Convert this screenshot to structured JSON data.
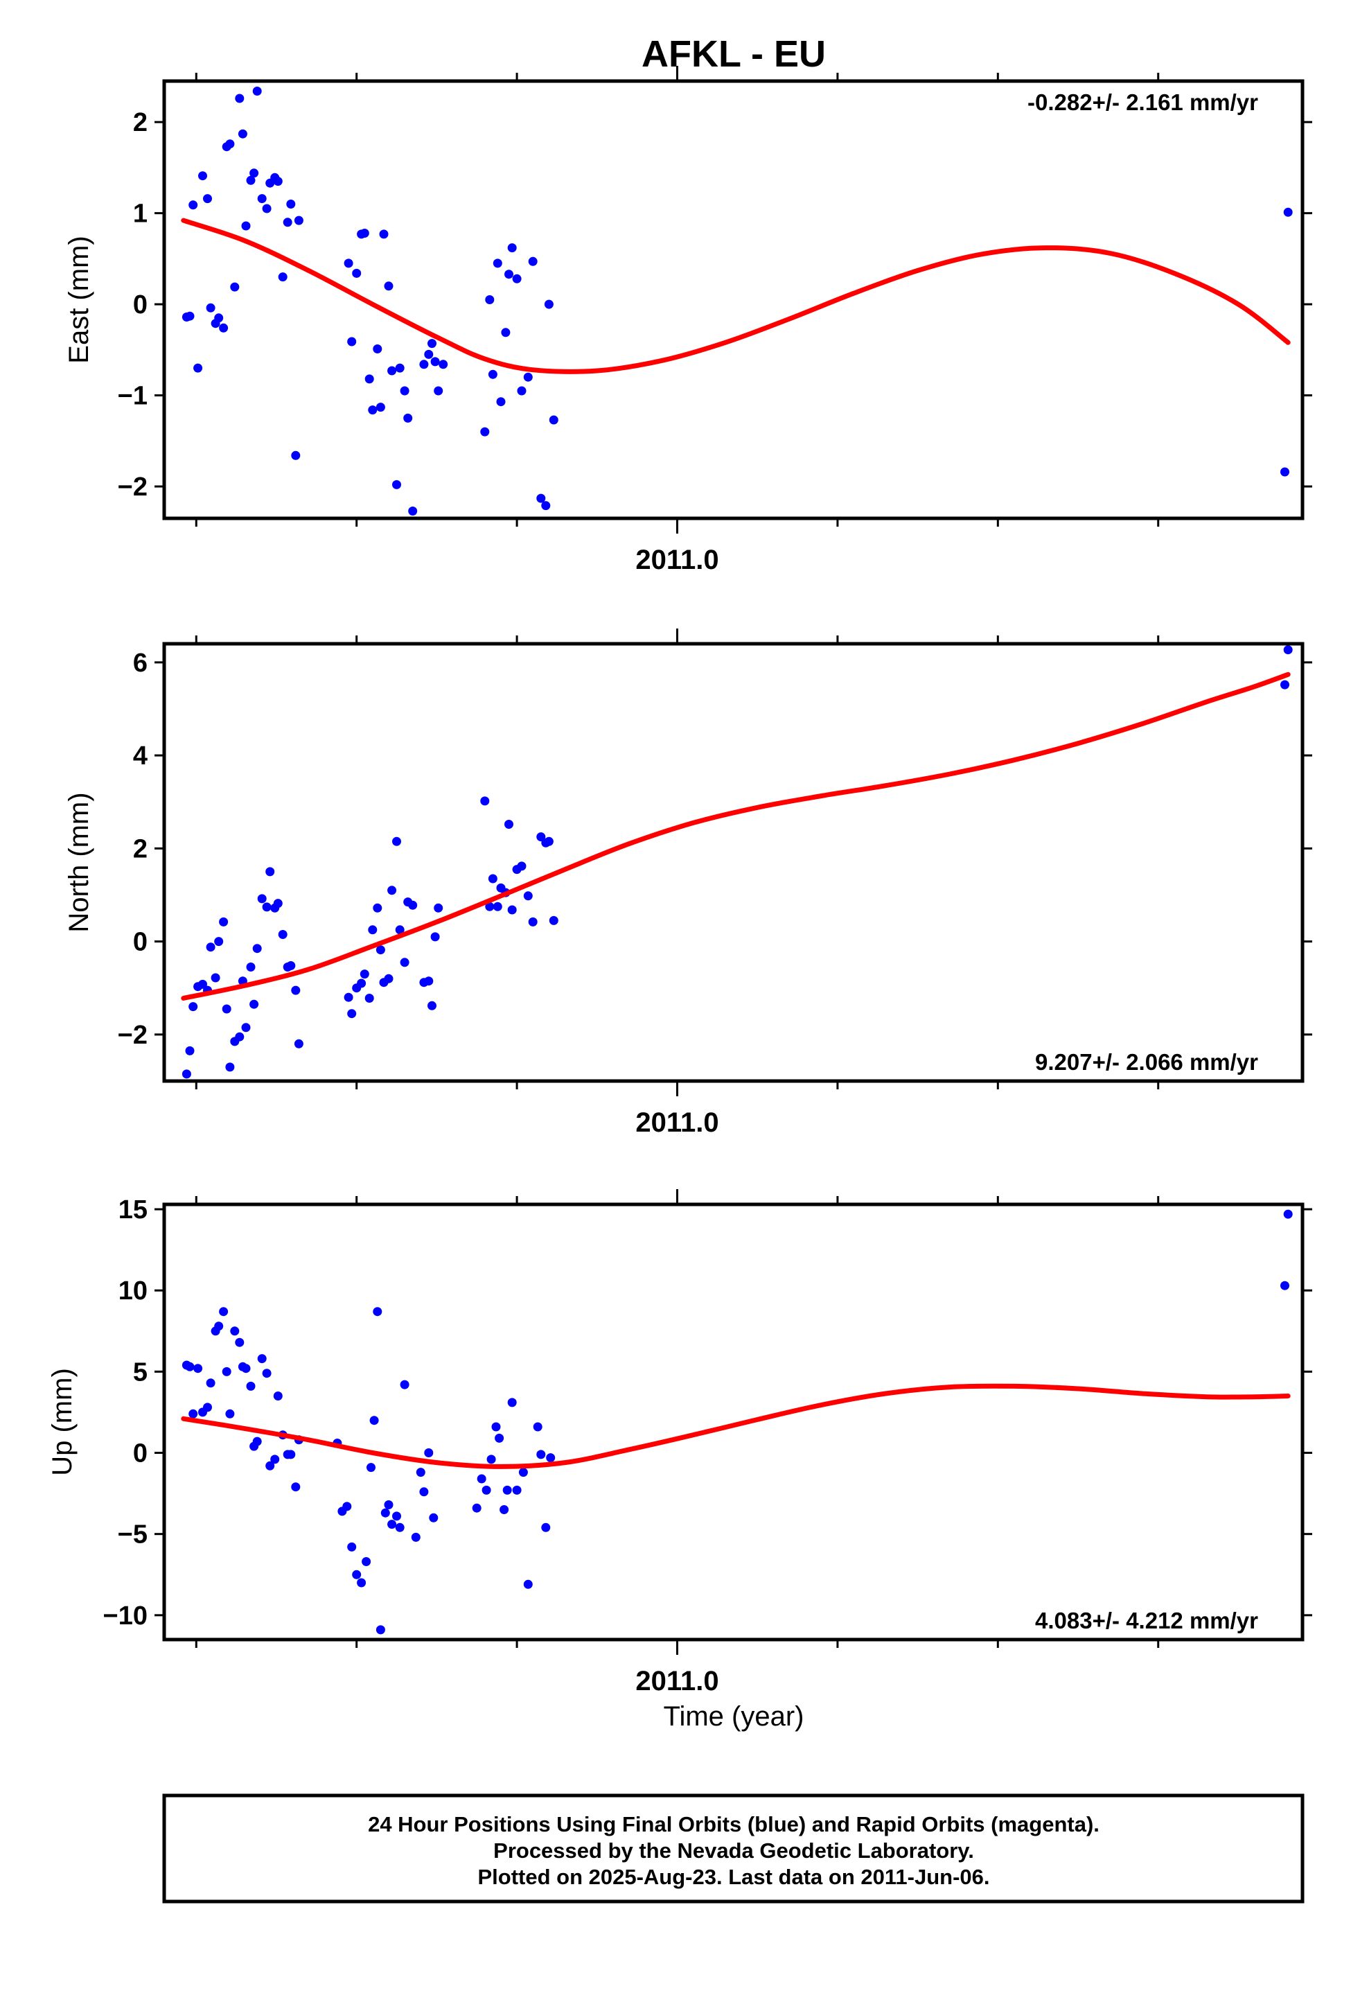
{
  "title": "AFKL - EU",
  "x_axis_label": "Time (year)",
  "footer_lines": [
    "24 Hour Positions Using Final Orbits (blue) and Rapid Orbits (magenta).",
    "Processed by the Nevada Geodetic Laboratory.",
    "Plotted on 2025-Aug-23. Last data on 2011-Jun-06."
  ],
  "colors": {
    "data_points": "#0000ff",
    "model_curve": "#ff0000",
    "frame": "#000000"
  },
  "chart_data": [
    {
      "type": "scatter",
      "ylabel": "East (mm)",
      "rate_label": "-0.282+/- 2.161 mm/yr",
      "rate_position": "top-right",
      "xlim": [
        2010.68,
        2011.39
      ],
      "ylim": [
        -2.35,
        2.45
      ],
      "yticks": [
        -2,
        -1,
        0,
        1,
        2
      ],
      "ytick_labels": [
        "−2",
        "−1",
        "0",
        "1",
        "2"
      ],
      "xticks_major": [
        2011.0
      ],
      "xtick_labels": [
        "2011.0"
      ],
      "xticks_minor": [
        2010.7,
        2010.8,
        2010.9,
        2011.1,
        2011.2,
        2011.3
      ],
      "points": [
        [
          2010.694,
          -0.14
        ],
        [
          2010.696,
          -0.13
        ],
        [
          2010.698,
          1.09
        ],
        [
          2010.701,
          -0.7
        ],
        [
          2010.704,
          1.41
        ],
        [
          2010.707,
          1.16
        ],
        [
          2010.709,
          -0.04
        ],
        [
          2010.712,
          -0.21
        ],
        [
          2010.714,
          -0.15
        ],
        [
          2010.717,
          -0.26
        ],
        [
          2010.719,
          1.73
        ],
        [
          2010.721,
          1.76
        ],
        [
          2010.724,
          0.19
        ],
        [
          2010.727,
          2.26
        ],
        [
          2010.729,
          1.87
        ],
        [
          2010.731,
          0.86
        ],
        [
          2010.734,
          1.36
        ],
        [
          2010.736,
          1.44
        ],
        [
          2010.738,
          2.34
        ],
        [
          2010.741,
          1.16
        ],
        [
          2010.744,
          1.05
        ],
        [
          2010.746,
          1.33
        ],
        [
          2010.749,
          1.39
        ],
        [
          2010.751,
          1.35
        ],
        [
          2010.754,
          0.3
        ],
        [
          2010.757,
          0.9
        ],
        [
          2010.759,
          1.1
        ],
        [
          2010.762,
          -1.66
        ],
        [
          2010.764,
          0.92
        ],
        [
          2010.795,
          0.45
        ],
        [
          2010.797,
          -0.41
        ],
        [
          2010.8,
          0.34
        ],
        [
          2010.803,
          0.77
        ],
        [
          2010.805,
          0.78
        ],
        [
          2010.808,
          -0.82
        ],
        [
          2010.81,
          -1.16
        ],
        [
          2010.813,
          -0.49
        ],
        [
          2010.815,
          -1.13
        ],
        [
          2010.817,
          0.77
        ],
        [
          2010.82,
          0.2
        ],
        [
          2010.822,
          -0.73
        ],
        [
          2010.825,
          -1.98
        ],
        [
          2010.827,
          -0.7
        ],
        [
          2010.83,
          -0.95
        ],
        [
          2010.832,
          -1.25
        ],
        [
          2010.835,
          -2.27
        ],
        [
          2010.842,
          -0.66
        ],
        [
          2010.845,
          -0.55
        ],
        [
          2010.847,
          -0.43
        ],
        [
          2010.849,
          -0.63
        ],
        [
          2010.851,
          -0.95
        ],
        [
          2010.854,
          -0.66
        ],
        [
          2010.88,
          -1.4
        ],
        [
          2010.883,
          0.05
        ],
        [
          2010.885,
          -0.77
        ],
        [
          2010.888,
          0.45
        ],
        [
          2010.89,
          -1.07
        ],
        [
          2010.893,
          -0.31
        ],
        [
          2010.895,
          0.33
        ],
        [
          2010.897,
          0.62
        ],
        [
          2010.9,
          0.28
        ],
        [
          2010.903,
          -0.95
        ],
        [
          2010.907,
          -0.8
        ],
        [
          2010.91,
          0.47
        ],
        [
          2010.915,
          -2.13
        ],
        [
          2010.918,
          -2.21
        ],
        [
          2010.92,
          0.0
        ],
        [
          2010.923,
          -1.27
        ],
        [
          2011.379,
          -1.84
        ],
        [
          2011.381,
          1.01
        ]
      ],
      "model_curve": {
        "x": [
          2010.692,
          2010.73,
          2010.77,
          2010.81,
          2010.85,
          2010.88,
          2010.91,
          2010.95,
          2010.99,
          2011.03,
          2011.07,
          2011.11,
          2011.15,
          2011.19,
          2011.23,
          2011.27,
          2011.31,
          2011.35,
          2011.381
        ],
        "y": [
          0.92,
          0.7,
          0.37,
          0.0,
          -0.36,
          -0.6,
          -0.72,
          -0.73,
          -0.62,
          -0.42,
          -0.16,
          0.12,
          0.37,
          0.55,
          0.62,
          0.56,
          0.34,
          0.0,
          -0.42
        ]
      }
    },
    {
      "type": "scatter",
      "ylabel": "North (mm)",
      "rate_label": "9.207+/- 2.066 mm/yr",
      "rate_position": "bottom-right",
      "xlim": [
        2010.68,
        2011.39
      ],
      "ylim": [
        -3.0,
        6.4
      ],
      "yticks": [
        -2,
        0,
        2,
        4,
        6
      ],
      "ytick_labels": [
        "−2",
        "0",
        "2",
        "4",
        "6"
      ],
      "xticks_major": [
        2011.0
      ],
      "xtick_labels": [
        "2011.0"
      ],
      "xticks_minor": [
        2010.7,
        2010.8,
        2010.9,
        2011.1,
        2011.2,
        2011.3
      ],
      "points": [
        [
          2010.694,
          -2.85
        ],
        [
          2010.696,
          -2.35
        ],
        [
          2010.698,
          -1.4
        ],
        [
          2010.701,
          -0.97
        ],
        [
          2010.704,
          -0.92
        ],
        [
          2010.707,
          -1.05
        ],
        [
          2010.709,
          -0.12
        ],
        [
          2010.712,
          -0.78
        ],
        [
          2010.714,
          0.0
        ],
        [
          2010.717,
          0.42
        ],
        [
          2010.719,
          -1.45
        ],
        [
          2010.721,
          -2.7
        ],
        [
          2010.724,
          -2.15
        ],
        [
          2010.727,
          -2.05
        ],
        [
          2010.729,
          -0.85
        ],
        [
          2010.731,
          -1.85
        ],
        [
          2010.734,
          -0.55
        ],
        [
          2010.736,
          -1.35
        ],
        [
          2010.738,
          -0.15
        ],
        [
          2010.741,
          0.92
        ],
        [
          2010.744,
          0.74
        ],
        [
          2010.746,
          1.5
        ],
        [
          2010.749,
          0.72
        ],
        [
          2010.751,
          0.82
        ],
        [
          2010.754,
          0.15
        ],
        [
          2010.757,
          -0.55
        ],
        [
          2010.759,
          -0.52
        ],
        [
          2010.762,
          -1.05
        ],
        [
          2010.764,
          -2.2
        ],
        [
          2010.795,
          -1.2
        ],
        [
          2010.797,
          -1.55
        ],
        [
          2010.8,
          -1.0
        ],
        [
          2010.803,
          -0.9
        ],
        [
          2010.805,
          -0.7
        ],
        [
          2010.808,
          -1.22
        ],
        [
          2010.81,
          0.25
        ],
        [
          2010.813,
          0.72
        ],
        [
          2010.815,
          -0.18
        ],
        [
          2010.817,
          -0.88
        ],
        [
          2010.82,
          -0.8
        ],
        [
          2010.822,
          1.1
        ],
        [
          2010.825,
          2.15
        ],
        [
          2010.827,
          0.25
        ],
        [
          2010.83,
          -0.45
        ],
        [
          2010.832,
          0.85
        ],
        [
          2010.835,
          0.78
        ],
        [
          2010.842,
          -0.88
        ],
        [
          2010.845,
          -0.85
        ],
        [
          2010.847,
          -1.38
        ],
        [
          2010.849,
          0.1
        ],
        [
          2010.851,
          0.72
        ],
        [
          2010.88,
          3.02
        ],
        [
          2010.883,
          0.75
        ],
        [
          2010.885,
          1.35
        ],
        [
          2010.888,
          0.75
        ],
        [
          2010.89,
          1.15
        ],
        [
          2010.893,
          1.05
        ],
        [
          2010.895,
          2.52
        ],
        [
          2010.897,
          0.68
        ],
        [
          2010.9,
          1.55
        ],
        [
          2010.903,
          1.62
        ],
        [
          2010.907,
          0.98
        ],
        [
          2010.91,
          0.42
        ],
        [
          2010.915,
          2.25
        ],
        [
          2010.918,
          2.12
        ],
        [
          2010.92,
          2.15
        ],
        [
          2010.923,
          0.45
        ],
        [
          2011.379,
          5.52
        ],
        [
          2011.381,
          6.27
        ]
      ],
      "model_curve": {
        "x": [
          2010.692,
          2010.73,
          2010.77,
          2010.81,
          2010.85,
          2010.89,
          2010.93,
          2010.97,
          2011.01,
          2011.05,
          2011.09,
          2011.13,
          2011.17,
          2011.21,
          2011.25,
          2011.29,
          2011.33,
          2011.36,
          2011.381
        ],
        "y": [
          -1.22,
          -0.95,
          -0.6,
          -0.1,
          0.42,
          0.98,
          1.55,
          2.1,
          2.55,
          2.88,
          3.13,
          3.35,
          3.6,
          3.9,
          4.26,
          4.68,
          5.15,
          5.48,
          5.74
        ]
      }
    },
    {
      "type": "scatter",
      "ylabel": "Up (mm)",
      "rate_label": "4.083+/- 4.212 mm/yr",
      "rate_position": "bottom-right",
      "xlim": [
        2010.68,
        2011.39
      ],
      "ylim": [
        -11.5,
        15.3
      ],
      "yticks": [
        -10,
        -5,
        0,
        5,
        10,
        15
      ],
      "ytick_labels": [
        "−10",
        "−5",
        "0",
        "5",
        "10",
        "15"
      ],
      "xticks_major": [
        2011.0
      ],
      "xtick_labels": [
        "2011.0"
      ],
      "xticks_minor": [
        2010.7,
        2010.8,
        2010.9,
        2011.1,
        2011.2,
        2011.3
      ],
      "points": [
        [
          2010.694,
          5.4
        ],
        [
          2010.696,
          5.3
        ],
        [
          2010.698,
          2.4
        ],
        [
          2010.701,
          5.2
        ],
        [
          2010.704,
          2.5
        ],
        [
          2010.707,
          2.8
        ],
        [
          2010.709,
          4.3
        ],
        [
          2010.712,
          7.5
        ],
        [
          2010.714,
          7.8
        ],
        [
          2010.717,
          8.7
        ],
        [
          2010.719,
          5.0
        ],
        [
          2010.721,
          2.4
        ],
        [
          2010.724,
          7.5
        ],
        [
          2010.727,
          6.8
        ],
        [
          2010.729,
          5.3
        ],
        [
          2010.731,
          5.2
        ],
        [
          2010.734,
          4.1
        ],
        [
          2010.736,
          0.4
        ],
        [
          2010.738,
          0.7
        ],
        [
          2010.741,
          5.8
        ],
        [
          2010.744,
          4.9
        ],
        [
          2010.746,
          -0.8
        ],
        [
          2010.749,
          -0.4
        ],
        [
          2010.751,
          3.5
        ],
        [
          2010.754,
          1.1
        ],
        [
          2010.757,
          -0.1
        ],
        [
          2010.759,
          -0.1
        ],
        [
          2010.762,
          -2.1
        ],
        [
          2010.764,
          0.8
        ],
        [
          2010.788,
          0.6
        ],
        [
          2010.791,
          -3.6
        ],
        [
          2010.794,
          -3.3
        ],
        [
          2010.797,
          -5.8
        ],
        [
          2010.8,
          -7.5
        ],
        [
          2010.803,
          -8.0
        ],
        [
          2010.806,
          -6.7
        ],
        [
          2010.809,
          -0.9
        ],
        [
          2010.811,
          2.0
        ],
        [
          2010.813,
          8.7
        ],
        [
          2010.815,
          -10.9
        ],
        [
          2010.818,
          -3.7
        ],
        [
          2010.82,
          -3.2
        ],
        [
          2010.822,
          -4.4
        ],
        [
          2010.825,
          -3.9
        ],
        [
          2010.827,
          -4.6
        ],
        [
          2010.83,
          4.2
        ],
        [
          2010.837,
          -5.2
        ],
        [
          2010.84,
          -1.2
        ],
        [
          2010.842,
          -2.4
        ],
        [
          2010.845,
          0.0
        ],
        [
          2010.848,
          -4.0
        ],
        [
          2010.875,
          -3.4
        ],
        [
          2010.878,
          -1.6
        ],
        [
          2010.881,
          -2.3
        ],
        [
          2010.884,
          -0.4
        ],
        [
          2010.887,
          1.6
        ],
        [
          2010.889,
          0.9
        ],
        [
          2010.892,
          -3.5
        ],
        [
          2010.894,
          -2.3
        ],
        [
          2010.897,
          3.1
        ],
        [
          2010.9,
          -2.3
        ],
        [
          2010.904,
          -1.2
        ],
        [
          2010.907,
          -8.1
        ],
        [
          2010.913,
          1.6
        ],
        [
          2010.915,
          -0.1
        ],
        [
          2010.918,
          -4.6
        ],
        [
          2010.921,
          -0.3
        ],
        [
          2011.379,
          10.3
        ],
        [
          2011.381,
          14.7
        ]
      ],
      "model_curve": {
        "x": [
          2010.692,
          2010.73,
          2010.77,
          2010.81,
          2010.85,
          2010.89,
          2010.93,
          2010.97,
          2011.01,
          2011.05,
          2011.09,
          2011.13,
          2011.17,
          2011.21,
          2011.25,
          2011.29,
          2011.33,
          2011.36,
          2011.381
        ],
        "y": [
          2.1,
          1.5,
          0.8,
          0.0,
          -0.6,
          -0.85,
          -0.6,
          0.2,
          1.1,
          2.05,
          2.95,
          3.65,
          4.05,
          4.1,
          3.95,
          3.65,
          3.45,
          3.45,
          3.5
        ]
      }
    }
  ]
}
